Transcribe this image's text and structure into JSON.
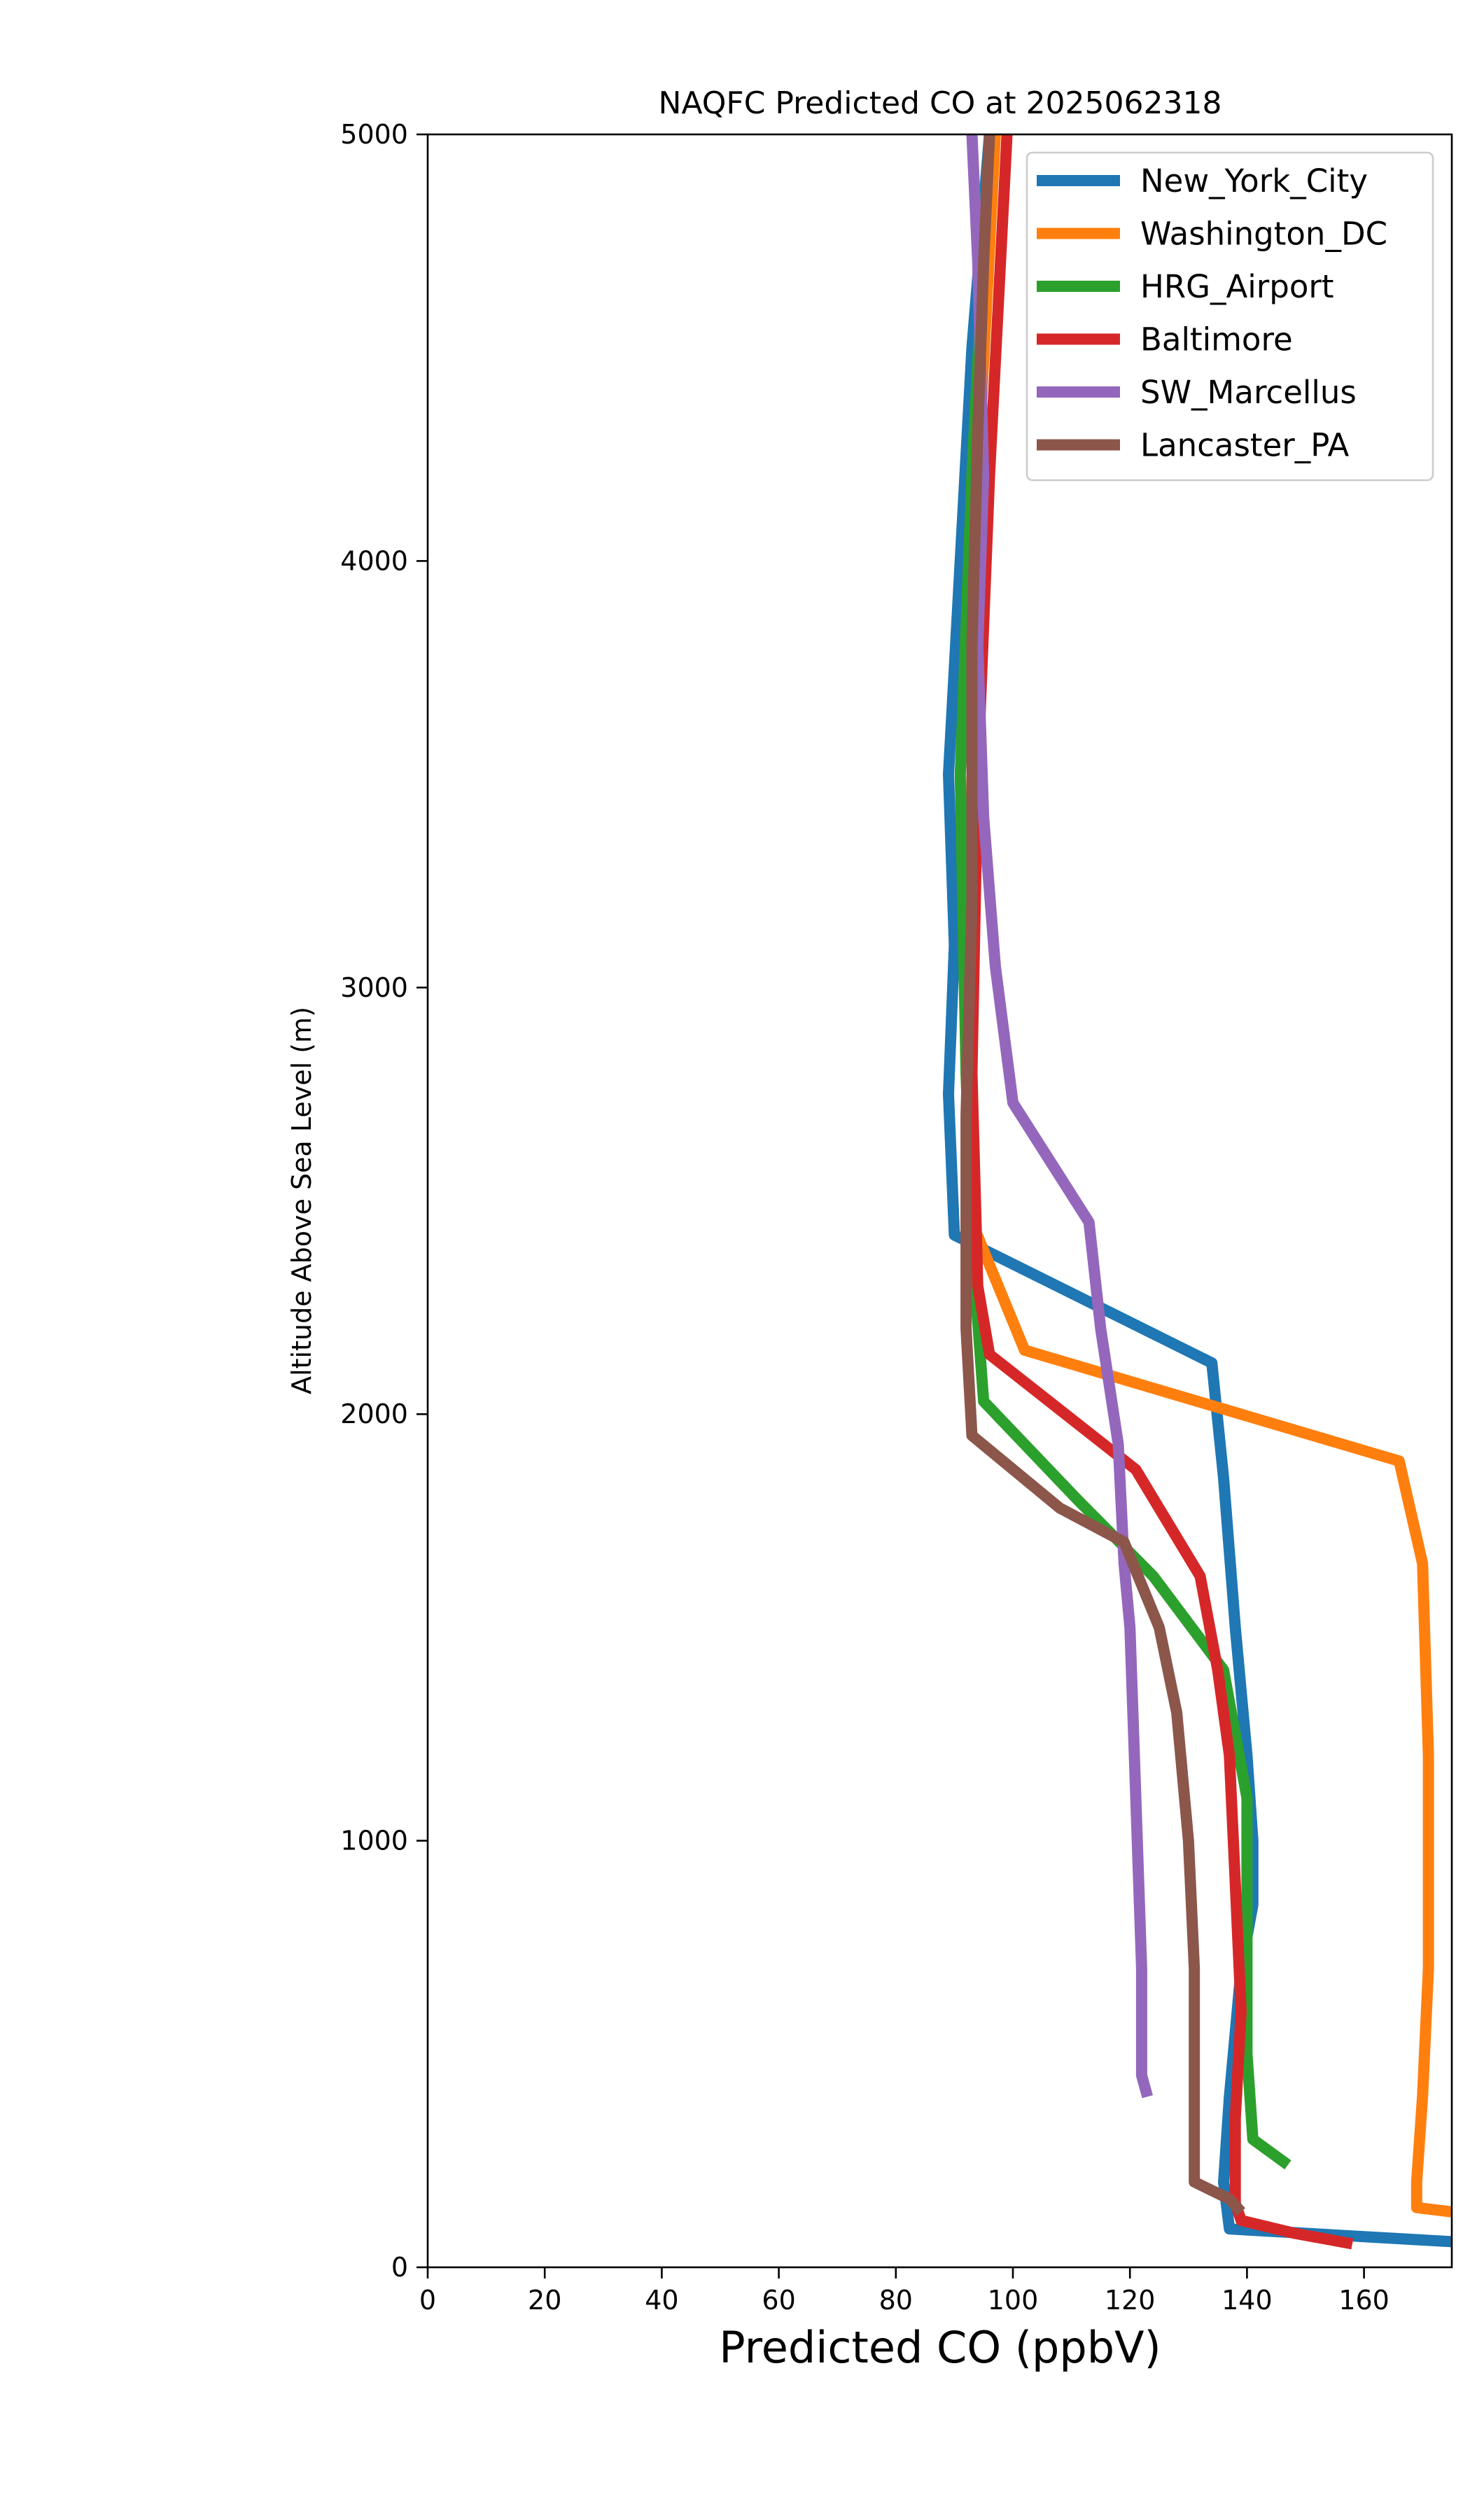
{
  "chart_data": {
    "type": "line",
    "title": "NAQFC Predicted CO at 2025062318",
    "xlabel": "Predicted CO (ppbV)",
    "ylabel": "Altitude Above Sea Level (m)",
    "xlim": [
      0,
      175
    ],
    "ylim": [
      0,
      5000
    ],
    "x_ticks": [
      "0",
      "20",
      "40",
      "60",
      "80",
      "100",
      "120",
      "140",
      "160"
    ],
    "y_ticks": [
      "0",
      "1000",
      "2000",
      "3000",
      "4000",
      "5000"
    ],
    "grid": false,
    "legend_position": "top-right",
    "series": [
      {
        "name": "New_York_City",
        "color": "#1f77b4",
        "points": [
          [
            175,
            60
          ],
          [
            137,
            90
          ],
          [
            136,
            200
          ],
          [
            137,
            400
          ],
          [
            139,
            700
          ],
          [
            141,
            850
          ],
          [
            141,
            1000
          ],
          [
            140,
            1200
          ],
          [
            138,
            1500
          ],
          [
            136,
            1850
          ],
          [
            134,
            2120
          ],
          [
            90,
            2420
          ],
          [
            89,
            2750
          ],
          [
            90,
            3100
          ],
          [
            89,
            3500
          ],
          [
            93,
            4500
          ],
          [
            96,
            5000
          ]
        ]
      },
      {
        "name": "Washington_DC",
        "color": "#ff7f0e",
        "points": [
          [
            175,
            130
          ],
          [
            169,
            140
          ],
          [
            169,
            200
          ],
          [
            170,
            400
          ],
          [
            171,
            700
          ],
          [
            171,
            900
          ],
          [
            171,
            1200
          ],
          [
            170,
            1650
          ],
          [
            166,
            1890
          ],
          [
            102,
            2150
          ],
          [
            93,
            2450
          ],
          [
            92,
            2800
          ],
          [
            93,
            3500
          ],
          [
            94,
            4200
          ],
          [
            97,
            5000
          ]
        ]
      },
      {
        "name": "HRG_Airport",
        "color": "#2ca02c",
        "points": [
          [
            147,
            240
          ],
          [
            141,
            300
          ],
          [
            140,
            500
          ],
          [
            140,
            800
          ],
          [
            140,
            1100
          ],
          [
            136,
            1400
          ],
          [
            124,
            1620
          ],
          [
            111,
            1800
          ],
          [
            95,
            2030
          ],
          [
            93,
            2400
          ],
          [
            92,
            2800
          ],
          [
            91,
            3500
          ],
          [
            93,
            4200
          ],
          [
            96,
            5000
          ]
        ]
      },
      {
        "name": "Baltimore",
        "color": "#d62728",
        "points": [
          [
            158,
            55
          ],
          [
            148,
            80
          ],
          [
            139,
            110
          ],
          [
            138,
            150
          ],
          [
            138,
            350
          ],
          [
            139,
            600
          ],
          [
            138,
            900
          ],
          [
            137,
            1200
          ],
          [
            135,
            1400
          ],
          [
            132,
            1620
          ],
          [
            121,
            1870
          ],
          [
            96,
            2140
          ],
          [
            94,
            2300
          ],
          [
            93,
            2800
          ],
          [
            94,
            3500
          ],
          [
            96,
            4200
          ],
          [
            99,
            5000
          ]
        ]
      },
      {
        "name": "SW_Marcellus",
        "color": "#9467bd",
        "points": [
          [
            123,
            400
          ],
          [
            122,
            450
          ],
          [
            122,
            700
          ],
          [
            121,
            1100
          ],
          [
            120,
            1500
          ],
          [
            119,
            1650
          ],
          [
            118,
            1930
          ],
          [
            115,
            2200
          ],
          [
            113,
            2450
          ],
          [
            100,
            2730
          ],
          [
            97,
            3050
          ],
          [
            95,
            3400
          ],
          [
            94,
            3800
          ],
          [
            95,
            4200
          ],
          [
            94,
            4700
          ],
          [
            93,
            5000
          ]
        ]
      },
      {
        "name": "Lancaster_PA",
        "color": "#8c564b",
        "points": [
          [
            139,
            130
          ],
          [
            137,
            160
          ],
          [
            131,
            200
          ],
          [
            131,
            400
          ],
          [
            131,
            700
          ],
          [
            130,
            1000
          ],
          [
            128,
            1300
          ],
          [
            125,
            1500
          ],
          [
            122,
            1600
          ],
          [
            119,
            1700
          ],
          [
            108,
            1780
          ],
          [
            93,
            1950
          ],
          [
            92,
            2200
          ],
          [
            92,
            2700
          ],
          [
            93,
            3200
          ],
          [
            93,
            3800
          ],
          [
            94,
            4300
          ],
          [
            95,
            4700
          ],
          [
            96,
            5000
          ]
        ]
      }
    ]
  }
}
